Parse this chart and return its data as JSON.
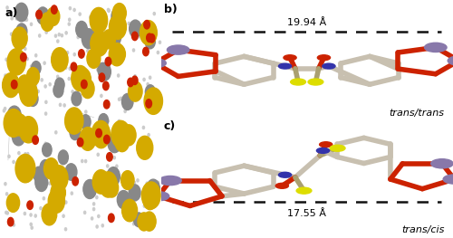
{
  "fig_width": 5.0,
  "fig_height": 2.63,
  "dpi": 100,
  "bg_color": "#ffffff",
  "label_a": "a)",
  "label_b": "b)",
  "label_c": "c)",
  "dist_b": "19.94 Å",
  "dist_c": "17.55 Å",
  "conf_b": "trans/trans",
  "conf_c": "trans/cis",
  "zn_color": "#8878aa",
  "o_color": "#cc2200",
  "n_color": "#3333aa",
  "s_color": "#dddd00",
  "bond_color": "#c8c0b0",
  "bond_lw": 4.0,
  "dashed_color": "#111111",
  "dashed_lw": 1.8,
  "font_label": 9,
  "font_dist": 8,
  "font_conf": 8
}
